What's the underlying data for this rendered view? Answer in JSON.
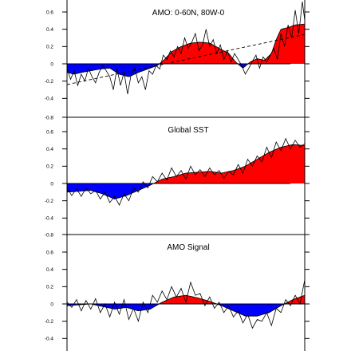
{
  "chart_data": [
    {
      "type": "area",
      "title": "AMO: 0-60N, 80W-0",
      "ylim": [
        -0.8,
        0.7
      ],
      "ytick_labels": [
        "0.6",
        "0.4",
        "0.2",
        "0",
        "-0.2",
        "-0.4",
        "-0.8"
      ],
      "ytick_values": [
        0.6,
        0.4,
        0.2,
        0,
        -0.2,
        -0.4,
        -0.8
      ],
      "zero_line_extent": [
        0.0,
        0.94
      ],
      "positive_color": "#ff0000",
      "negative_color": "#0000ff",
      "series": [
        {
          "role": "smoothed",
          "x": [
            0,
            0.03,
            0.06,
            0.1,
            0.14,
            0.18,
            0.22,
            0.26,
            0.3,
            0.34,
            0.38,
            0.41,
            0.44,
            0.48,
            0.52,
            0.56,
            0.6,
            0.64,
            0.68,
            0.71,
            0.74,
            0.77,
            0.8,
            0.83,
            0.86,
            0.88,
            0.9,
            0.93,
            0.96,
            1.0
          ],
          "values": [
            -0.1,
            -0.12,
            -0.1,
            -0.08,
            -0.06,
            -0.05,
            -0.12,
            -0.15,
            -0.1,
            -0.06,
            -0.02,
            0.05,
            0.14,
            0.2,
            0.24,
            0.25,
            0.24,
            0.18,
            0.12,
            0.02,
            -0.05,
            0.02,
            0.06,
            0.04,
            0.12,
            0.28,
            0.4,
            0.42,
            0.45,
            0.46
          ]
        },
        {
          "role": "annual",
          "x": [
            0,
            0.015,
            0.03,
            0.045,
            0.06,
            0.075,
            0.09,
            0.105,
            0.12,
            0.135,
            0.15,
            0.165,
            0.18,
            0.195,
            0.21,
            0.225,
            0.24,
            0.255,
            0.27,
            0.285,
            0.3,
            0.315,
            0.33,
            0.345,
            0.36,
            0.375,
            0.39,
            0.405,
            0.42,
            0.435,
            0.45,
            0.465,
            0.48,
            0.495,
            0.51,
            0.525,
            0.54,
            0.555,
            0.57,
            0.585,
            0.6,
            0.615,
            0.63,
            0.645,
            0.66,
            0.675,
            0.69,
            0.705,
            0.72,
            0.735,
            0.75,
            0.765,
            0.78,
            0.795,
            0.81,
            0.825,
            0.84,
            0.855,
            0.87,
            0.885,
            0.9,
            0.915,
            0.93,
            0.945,
            0.96,
            0.975,
            0.99,
            1.0
          ],
          "values": [
            -0.05,
            -0.18,
            -0.08,
            -0.25,
            -0.12,
            -0.2,
            -0.05,
            -0.15,
            -0.22,
            -0.1,
            -0.02,
            -0.08,
            -0.15,
            -0.3,
            -0.05,
            -0.25,
            -0.1,
            -0.35,
            -0.12,
            -0.05,
            -0.22,
            -0.15,
            -0.3,
            -0.08,
            -0.12,
            -0.02,
            -0.06,
            0.1,
            0.05,
            0.15,
            0.08,
            0.2,
            0.12,
            0.3,
            0.18,
            0.25,
            0.35,
            0.15,
            0.22,
            0.4,
            0.2,
            0.28,
            0.12,
            0.22,
            0.05,
            0.15,
            0.02,
            0.12,
            0.05,
            -0.02,
            -0.12,
            -0.05,
            0.03,
            0.1,
            -0.05,
            0.08,
            0.02,
            0.1,
            0.18,
            0.05,
            0.35,
            0.2,
            0.45,
            0.3,
            0.62,
            0.35,
            0.72,
            0.5
          ]
        },
        {
          "role": "linear-trend",
          "x": [
            0,
            1.0
          ],
          "values": [
            -0.24,
            0.34
          ]
        }
      ]
    },
    {
      "type": "area",
      "title": "Global SST",
      "ylim": [
        -0.8,
        0.7
      ],
      "ytick_labels": [
        "0.6",
        "0.4",
        "0.2",
        "0",
        "-0.2",
        "-0.4",
        "-0.8"
      ],
      "ytick_values": [
        0.6,
        0.4,
        0.2,
        0,
        -0.2,
        -0.4,
        -0.8
      ],
      "zero_line_extent": [
        0.0,
        0.94
      ],
      "positive_color": "#ff0000",
      "negative_color": "#0000ff",
      "series": [
        {
          "role": "smoothed",
          "x": [
            0,
            0.05,
            0.1,
            0.15,
            0.2,
            0.25,
            0.3,
            0.35,
            0.4,
            0.45,
            0.5,
            0.55,
            0.6,
            0.65,
            0.7,
            0.75,
            0.8,
            0.85,
            0.9,
            0.95,
            1.0
          ],
          "values": [
            -0.1,
            -0.09,
            -0.08,
            -0.12,
            -0.18,
            -0.14,
            -0.08,
            -0.02,
            0.05,
            0.08,
            0.12,
            0.13,
            0.14,
            0.12,
            0.15,
            0.2,
            0.28,
            0.36,
            0.42,
            0.45,
            0.44
          ]
        },
        {
          "role": "annual",
          "x": [
            0,
            0.02,
            0.04,
            0.06,
            0.08,
            0.1,
            0.12,
            0.14,
            0.16,
            0.18,
            0.2,
            0.22,
            0.24,
            0.26,
            0.28,
            0.3,
            0.32,
            0.34,
            0.36,
            0.38,
            0.4,
            0.42,
            0.44,
            0.46,
            0.48,
            0.5,
            0.52,
            0.54,
            0.56,
            0.58,
            0.6,
            0.62,
            0.64,
            0.66,
            0.68,
            0.7,
            0.72,
            0.74,
            0.76,
            0.78,
            0.8,
            0.82,
            0.84,
            0.86,
            0.88,
            0.9,
            0.92,
            0.94,
            0.96,
            0.98,
            1.0
          ],
          "values": [
            -0.05,
            -0.14,
            -0.06,
            -0.15,
            -0.05,
            -0.12,
            -0.08,
            -0.18,
            -0.1,
            -0.22,
            -0.15,
            -0.25,
            -0.12,
            -0.2,
            -0.05,
            -0.1,
            0.02,
            -0.05,
            0.08,
            0.02,
            0.12,
            0.04,
            0.18,
            0.08,
            0.15,
            0.05,
            0.2,
            0.1,
            0.16,
            0.08,
            0.18,
            0.1,
            0.15,
            0.06,
            0.14,
            0.1,
            0.22,
            0.12,
            0.28,
            0.2,
            0.32,
            0.25,
            0.42,
            0.3,
            0.48,
            0.38,
            0.52,
            0.4,
            0.5,
            0.42,
            0.46
          ]
        }
      ]
    },
    {
      "type": "area",
      "title": "AMO Signal",
      "ylim": [
        -0.5,
        0.7
      ],
      "ytick_labels": [
        "0.6",
        "0.4",
        "0.2",
        "0",
        "-0.2",
        "-0.4"
      ],
      "ytick_values": [
        0.6,
        0.4,
        0.2,
        0,
        -0.2,
        -0.4
      ],
      "zero_line_extent": [
        0.0,
        1.0
      ],
      "positive_color": "#ff0000",
      "negative_color": "#0000ff",
      "series": [
        {
          "role": "smoothed",
          "x": [
            0,
            0.05,
            0.1,
            0.15,
            0.2,
            0.25,
            0.3,
            0.35,
            0.4,
            0.45,
            0.5,
            0.55,
            0.6,
            0.65,
            0.7,
            0.75,
            0.8,
            0.85,
            0.9,
            0.95,
            1.0
          ],
          "values": [
            -0.02,
            -0.01,
            0.0,
            -0.03,
            -0.06,
            -0.04,
            -0.08,
            -0.06,
            0.02,
            0.08,
            0.1,
            0.07,
            0.03,
            -0.02,
            -0.08,
            -0.14,
            -0.14,
            -0.1,
            -0.02,
            0.05,
            0.1
          ]
        },
        {
          "role": "annual",
          "x": [
            0,
            0.02,
            0.04,
            0.06,
            0.08,
            0.1,
            0.12,
            0.14,
            0.16,
            0.18,
            0.2,
            0.22,
            0.24,
            0.26,
            0.28,
            0.3,
            0.32,
            0.34,
            0.36,
            0.38,
            0.4,
            0.42,
            0.44,
            0.46,
            0.48,
            0.5,
            0.52,
            0.54,
            0.56,
            0.58,
            0.6,
            0.62,
            0.64,
            0.66,
            0.68,
            0.7,
            0.72,
            0.74,
            0.76,
            0.78,
            0.8,
            0.82,
            0.84,
            0.86,
            0.88,
            0.9,
            0.92,
            0.94,
            0.96,
            0.98,
            1.0
          ],
          "values": [
            0.02,
            -0.04,
            0.05,
            -0.08,
            0.04,
            -0.06,
            0.06,
            -0.1,
            0.0,
            -0.15,
            0.02,
            -0.12,
            0.05,
            -0.18,
            -0.05,
            -0.2,
            0.02,
            -0.1,
            0.1,
            0.02,
            0.15,
            0.05,
            0.2,
            0.08,
            0.18,
            0.02,
            0.25,
            0.1,
            0.12,
            -0.02,
            0.08,
            -0.05,
            0.02,
            -0.1,
            -0.02,
            -0.15,
            -0.08,
            -0.22,
            -0.12,
            -0.28,
            -0.18,
            -0.2,
            -0.1,
            -0.25,
            -0.05,
            -0.1,
            0.05,
            -0.02,
            0.1,
            0.0,
            0.28
          ]
        }
      ]
    }
  ]
}
